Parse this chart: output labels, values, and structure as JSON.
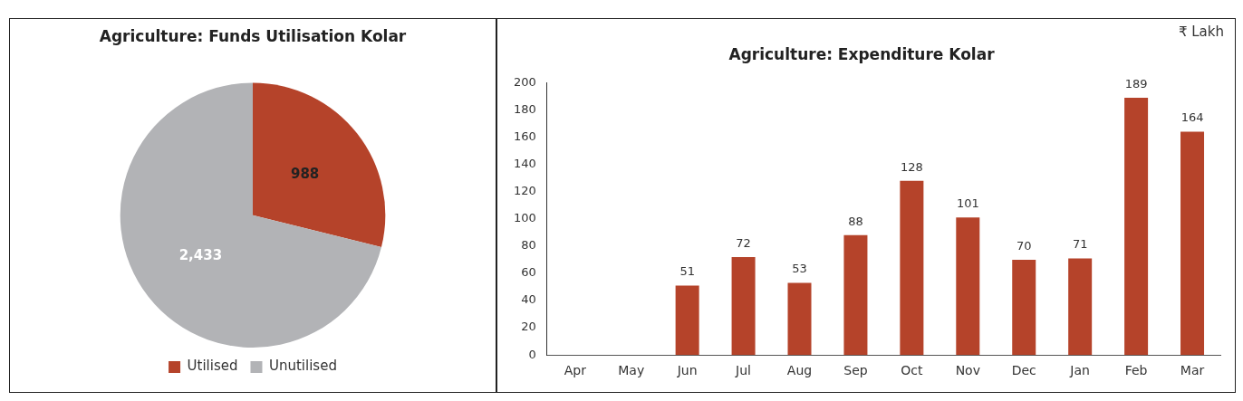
{
  "chart_data": [
    {
      "type": "pie",
      "title": "Agriculture: Funds Utilisation Kolar",
      "categories": [
        "Utilised",
        "Unutilised"
      ],
      "values": [
        988,
        2433
      ],
      "colors": [
        "#b5432a",
        "#b2b3b6"
      ],
      "value_labels": [
        "988",
        "2,433"
      ],
      "legend": "bottom"
    },
    {
      "type": "bar",
      "title": "Agriculture: Expenditure Kolar",
      "ylabel": "₹ Lakh",
      "categories": [
        "Apr",
        "May",
        "Jun",
        "Jul",
        "Aug",
        "Sep",
        "Oct",
        "Nov",
        "Dec",
        "Jan",
        "Feb",
        "Mar"
      ],
      "values": [
        null,
        null,
        51,
        72,
        53,
        88,
        128,
        101,
        70,
        71,
        189,
        164
      ],
      "color": "#b5432a",
      "ylim": [
        0,
        200
      ],
      "yticks": [
        0,
        20,
        40,
        60,
        80,
        100,
        120,
        140,
        160,
        180,
        200
      ],
      "grid": false,
      "data_labels": true
    }
  ]
}
